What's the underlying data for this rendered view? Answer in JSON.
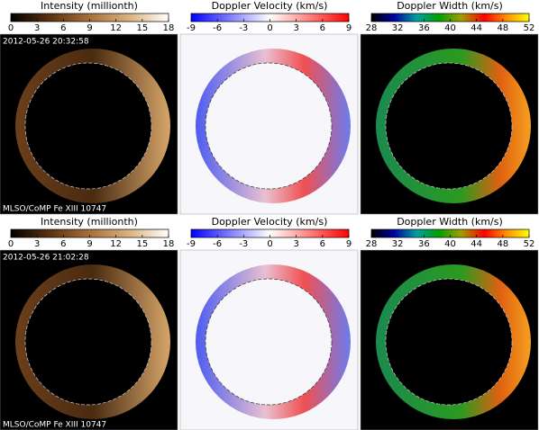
{
  "chart_data": [
    {
      "type": "colormap-image",
      "title": "Intensity (millionth)",
      "xlim": [
        0,
        18
      ],
      "xticks": [
        0,
        3,
        6,
        9,
        12,
        15,
        18
      ],
      "colors": [
        "#000000",
        "#5a3212",
        "#a8703a",
        "#d9b27e",
        "#ffffff"
      ],
      "background": "#000000",
      "timestamp": "2012-05-26 20:32:58",
      "label": "MLSO/CoMP Fe XIII 10747"
    },
    {
      "type": "colormap-image",
      "title": "Doppler Velocity (km/s)",
      "xlim": [
        -9,
        9
      ],
      "xticks": [
        -9,
        -6,
        -3,
        0,
        3,
        6,
        9
      ],
      "colors": [
        "#0000ff",
        "#8080ff",
        "#ffffff",
        "#ff8080",
        "#ff0000"
      ],
      "background": "#f7f7fb"
    },
    {
      "type": "colormap-image",
      "title": "Doppler Width (km/s)",
      "xlim": [
        28,
        52
      ],
      "xticks": [
        28,
        32,
        36,
        40,
        44,
        48,
        52
      ],
      "colors": [
        "#000000",
        "#0000a0",
        "#00a0a0",
        "#00a000",
        "#a0a000",
        "#ff0000",
        "#ff9000",
        "#ffff00"
      ],
      "background": "#000000"
    },
    {
      "type": "colormap-image",
      "title": "Intensity (millionth)",
      "xlim": [
        0,
        18
      ],
      "xticks": [
        0,
        3,
        6,
        9,
        12,
        15,
        18
      ],
      "colors": [
        "#000000",
        "#5a3212",
        "#a8703a",
        "#d9b27e",
        "#ffffff"
      ],
      "background": "#000000",
      "timestamp": "2012-05-26 21:02:28",
      "label": "MLSO/CoMP Fe XIII 10747"
    },
    {
      "type": "colormap-image",
      "title": "Doppler Velocity (km/s)",
      "xlim": [
        -9,
        9
      ],
      "xticks": [
        -9,
        -6,
        -3,
        0,
        3,
        6,
        9
      ],
      "colors": [
        "#0000ff",
        "#8080ff",
        "#ffffff",
        "#ff8080",
        "#ff0000"
      ],
      "background": "#f7f7fb"
    },
    {
      "type": "colormap-image",
      "title": "Doppler Width (km/s)",
      "xlim": [
        28,
        52
      ],
      "xticks": [
        28,
        32,
        36,
        40,
        44,
        48,
        52
      ],
      "colors": [
        "#000000",
        "#0000a0",
        "#00a0a0",
        "#00a000",
        "#a0a000",
        "#ff0000",
        "#ff9000",
        "#ffff00"
      ],
      "background": "#000000"
    }
  ]
}
